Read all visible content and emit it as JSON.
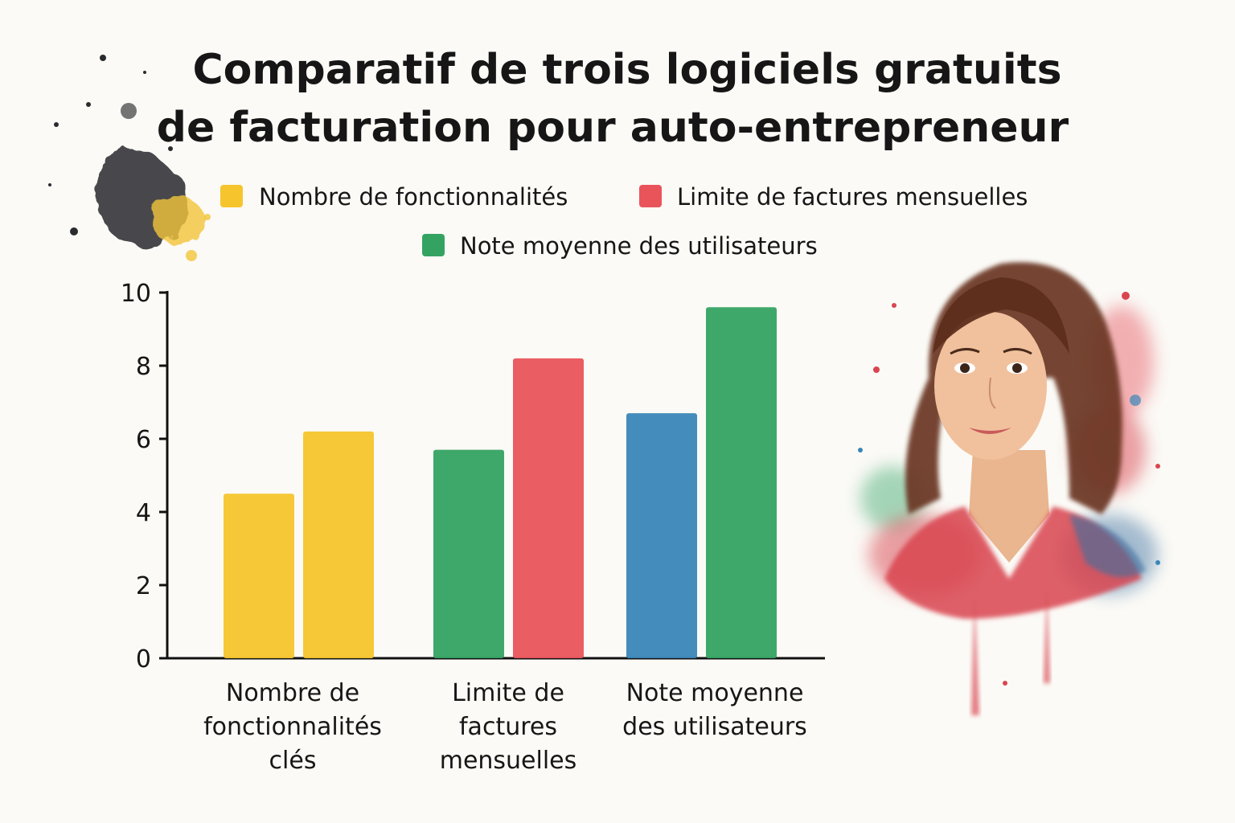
{
  "chart_data": {
    "type": "bar",
    "title": [
      "Comparatif de trois logiciels gratuits",
      "de facturation pour auto-entrepreneur"
    ],
    "legend": [
      {
        "label": "Nombre de fonctionnalités",
        "color": "#f6c52d"
      },
      {
        "label": "Limite de factures mensuelles",
        "color": "#e9545a"
      },
      {
        "label": "Note moyenne des utilisateurs",
        "color": "#34a362"
      }
    ],
    "categories": [
      [
        "Nombre de",
        "fonctionnalités",
        "clés"
      ],
      [
        "Limite de",
        "factures",
        "mensuelles"
      ],
      [
        "Note moyenne",
        "des utilisateurs"
      ]
    ],
    "groups": [
      {
        "bars": [
          {
            "value": 4.5,
            "color": "#f6c52d"
          },
          {
            "value": 6.2,
            "color": "#f6c52d"
          }
        ]
      },
      {
        "bars": [
          {
            "value": 5.7,
            "color": "#34a362"
          },
          {
            "value": 8.2,
            "color": "#e9545a"
          }
        ]
      },
      {
        "bars": [
          {
            "value": 6.7,
            "color": "#3a86b8"
          },
          {
            "value": 9.6,
            "color": "#34a362"
          }
        ]
      }
    ],
    "yticks": [
      "0",
      "2",
      "4",
      "6",
      "8",
      "10"
    ],
    "ylim": [
      0,
      10
    ],
    "xlabel": "",
    "ylabel": "",
    "grid": false
  },
  "portrait": {
    "description_icon": "woman-watercolor-portrait"
  }
}
